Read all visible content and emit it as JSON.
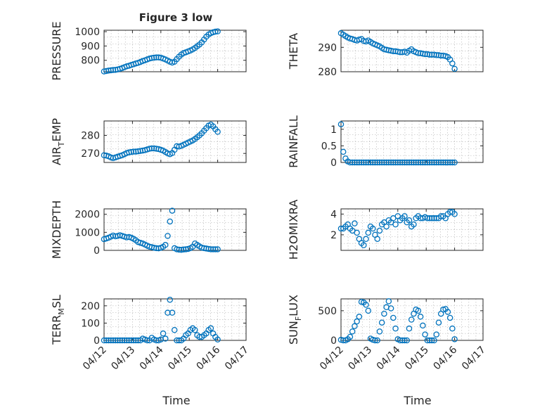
{
  "figure": {
    "title": "Figure 3 low",
    "xlabel": "Time",
    "date_ticks": [
      "04/12",
      "04/13",
      "04/14",
      "04/15",
      "04/16",
      "04/17"
    ]
  },
  "chart_data": [
    {
      "type": "scatter",
      "ylabel": "PRESSURE",
      "xlim": [
        0,
        5
      ],
      "ylim": [
        720,
        1010
      ],
      "yticks": [
        800,
        900,
        1000
      ],
      "color": "#0072BD",
      "x": [
        0,
        0.08,
        0.16,
        0.24,
        0.32,
        0.4,
        0.48,
        0.56,
        0.64,
        0.72,
        0.8,
        0.88,
        0.96,
        1.04,
        1.12,
        1.2,
        1.28,
        1.36,
        1.44,
        1.52,
        1.6,
        1.68,
        1.76,
        1.84,
        1.92,
        2.0,
        2.08,
        2.16,
        2.24,
        2.32,
        2.4,
        2.48,
        2.56,
        2.64,
        2.72,
        2.8,
        2.88,
        2.96,
        3.04,
        3.12,
        3.2,
        3.28,
        3.36,
        3.44,
        3.52,
        3.6,
        3.68,
        3.76,
        3.84,
        3.92,
        4.0
      ],
      "y": [
        722,
        725,
        728,
        730,
        732,
        733,
        736,
        740,
        745,
        752,
        758,
        762,
        768,
        772,
        778,
        782,
        788,
        795,
        800,
        806,
        812,
        816,
        818,
        820,
        820,
        818,
        812,
        806,
        798,
        790,
        784,
        790,
        808,
        825,
        840,
        850,
        856,
        862,
        868,
        876,
        886,
        898,
        910,
        925,
        945,
        965,
        980,
        990,
        996,
        1000,
        1002
      ]
    },
    {
      "type": "scatter",
      "ylabel": "THETA",
      "xlim": [
        0,
        5
      ],
      "ylim": [
        280,
        297
      ],
      "yticks": [
        280,
        290
      ],
      "color": "#0072BD",
      "x": [
        0,
        0.08,
        0.16,
        0.24,
        0.32,
        0.4,
        0.48,
        0.56,
        0.64,
        0.72,
        0.8,
        0.88,
        0.96,
        1.04,
        1.12,
        1.2,
        1.28,
        1.36,
        1.44,
        1.52,
        1.6,
        1.68,
        1.76,
        1.84,
        1.92,
        2.0,
        2.08,
        2.16,
        2.24,
        2.32,
        2.4,
        2.48,
        2.56,
        2.64,
        2.72,
        2.8,
        2.88,
        2.96,
        3.04,
        3.12,
        3.2,
        3.28,
        3.36,
        3.44,
        3.52,
        3.6,
        3.68,
        3.76,
        3.84,
        3.92,
        4.0
      ],
      "y": [
        295.8,
        295.2,
        294.6,
        294.0,
        293.6,
        293.4,
        293.0,
        292.8,
        293.2,
        293.4,
        292.6,
        292.4,
        292.8,
        292.2,
        291.6,
        291.2,
        290.8,
        290.4,
        289.8,
        289.2,
        289.0,
        288.8,
        288.6,
        288.4,
        288.4,
        288.2,
        288.0,
        288.0,
        288.2,
        287.8,
        288.6,
        289.2,
        288.4,
        288.0,
        287.6,
        287.6,
        287.4,
        287.2,
        287.2,
        287.0,
        287.0,
        287.0,
        286.8,
        286.8,
        286.6,
        286.6,
        286.4,
        286.0,
        285.0,
        283.4,
        281.2
      ]
    },
    {
      "type": "scatter",
      "ylabel": "AIR",
      "ylabel_sub": "T",
      "ylabel_rest": "EMP",
      "xlim": [
        0,
        5
      ],
      "ylim": [
        265,
        288
      ],
      "yticks": [
        270,
        280
      ],
      "color": "#0072BD",
      "x": [
        0,
        0.08,
        0.16,
        0.24,
        0.32,
        0.4,
        0.48,
        0.56,
        0.64,
        0.72,
        0.8,
        0.88,
        0.96,
        1.04,
        1.12,
        1.2,
        1.28,
        1.36,
        1.44,
        1.52,
        1.6,
        1.68,
        1.76,
        1.84,
        1.92,
        2.0,
        2.08,
        2.16,
        2.24,
        2.32,
        2.4,
        2.48,
        2.56,
        2.64,
        2.72,
        2.8,
        2.88,
        2.96,
        3.04,
        3.12,
        3.2,
        3.28,
        3.36,
        3.44,
        3.52,
        3.6,
        3.68,
        3.76,
        3.84,
        3.92,
        4.0
      ],
      "y": [
        269.0,
        268.8,
        268.4,
        267.8,
        267.4,
        267.8,
        268.2,
        268.6,
        269.0,
        269.6,
        270.2,
        270.6,
        270.8,
        271.0,
        271.0,
        271.2,
        271.4,
        271.6,
        271.8,
        272.2,
        272.6,
        272.8,
        272.8,
        272.6,
        272.4,
        272.0,
        271.6,
        270.8,
        270.0,
        269.6,
        270.2,
        272.0,
        274.0,
        273.8,
        274.2,
        274.8,
        275.4,
        276.0,
        276.6,
        277.2,
        278.0,
        279.0,
        280.0,
        281.2,
        282.6,
        284.0,
        285.4,
        286.0,
        285.0,
        283.4,
        282.0
      ]
    },
    {
      "type": "scatter",
      "ylabel": "RAINFALL",
      "xlim": [
        0,
        5
      ],
      "ylim": [
        0,
        1.25
      ],
      "yticks": [
        0,
        0.5,
        1
      ],
      "color": "#0072BD",
      "x": [
        0,
        0.08,
        0.16,
        0.24,
        0.32,
        0.4,
        0.48,
        0.56,
        0.64,
        0.72,
        0.8,
        0.88,
        0.96,
        1.04,
        1.12,
        1.2,
        1.28,
        1.36,
        1.44,
        1.52,
        1.6,
        1.68,
        1.76,
        1.84,
        1.92,
        2.0,
        2.08,
        2.16,
        2.24,
        2.32,
        2.4,
        2.48,
        2.56,
        2.64,
        2.72,
        2.8,
        2.88,
        2.96,
        3.04,
        3.12,
        3.2,
        3.28,
        3.36,
        3.44,
        3.52,
        3.6,
        3.68,
        3.76,
        3.84,
        3.92,
        4.0
      ],
      "y": [
        1.15,
        0.32,
        0.12,
        0.03,
        0,
        0,
        0,
        0,
        0,
        0,
        0,
        0,
        0,
        0,
        0,
        0,
        0,
        0,
        0,
        0,
        0,
        0,
        0,
        0,
        0,
        0,
        0,
        0,
        0,
        0,
        0,
        0,
        0,
        0,
        0,
        0,
        0,
        0,
        0,
        0,
        0,
        0,
        0,
        0,
        0,
        0,
        0,
        0,
        0,
        0,
        0
      ]
    },
    {
      "type": "scatter",
      "ylabel": "MIXDEPTH",
      "xlim": [
        0,
        5
      ],
      "ylim": [
        0,
        2300
      ],
      "yticks": [
        0,
        1000,
        2000
      ],
      "color": "#0072BD",
      "x": [
        0,
        0.08,
        0.16,
        0.24,
        0.32,
        0.4,
        0.48,
        0.56,
        0.64,
        0.72,
        0.8,
        0.88,
        0.96,
        1.04,
        1.12,
        1.2,
        1.28,
        1.36,
        1.44,
        1.52,
        1.6,
        1.68,
        1.76,
        1.84,
        1.92,
        2.0,
        2.08,
        2.16,
        2.24,
        2.32,
        2.4,
        2.48,
        2.56,
        2.64,
        2.72,
        2.8,
        2.88,
        2.96,
        3.04,
        3.12,
        3.2,
        3.28,
        3.36,
        3.44,
        3.52,
        3.6,
        3.68,
        3.76,
        3.84,
        3.92,
        4.0
      ],
      "y": [
        620,
        660,
        700,
        760,
        820,
        780,
        800,
        840,
        800,
        760,
        720,
        740,
        700,
        640,
        560,
        460,
        420,
        380,
        320,
        260,
        200,
        180,
        140,
        120,
        110,
        140,
        200,
        300,
        800,
        1600,
        2200,
        120,
        60,
        40,
        30,
        50,
        60,
        80,
        120,
        200,
        380,
        300,
        220,
        150,
        120,
        100,
        80,
        60,
        60,
        60,
        60
      ]
    },
    {
      "type": "scatter",
      "ylabel": "H2OMIXRA",
      "xlim": [
        0,
        5
      ],
      "ylim": [
        0.5,
        4.5
      ],
      "yticks": [
        2,
        4
      ],
      "color": "#0072BD",
      "x": [
        0,
        0.08,
        0.16,
        0.24,
        0.32,
        0.4,
        0.48,
        0.56,
        0.64,
        0.72,
        0.8,
        0.88,
        0.96,
        1.04,
        1.12,
        1.2,
        1.28,
        1.36,
        1.44,
        1.52,
        1.6,
        1.68,
        1.76,
        1.84,
        1.92,
        2.0,
        2.08,
        2.16,
        2.24,
        2.32,
        2.4,
        2.48,
        2.56,
        2.64,
        2.72,
        2.8,
        2.88,
        2.96,
        3.04,
        3.12,
        3.2,
        3.28,
        3.36,
        3.44,
        3.52,
        3.6,
        3.68,
        3.76,
        3.84,
        3.92,
        4.0
      ],
      "y": [
        2.6,
        2.6,
        2.8,
        3.0,
        2.6,
        2.4,
        3.1,
        2.2,
        1.6,
        1.2,
        1.0,
        1.6,
        2.2,
        2.8,
        2.6,
        2.0,
        1.6,
        2.4,
        3.0,
        3.2,
        2.8,
        3.4,
        3.2,
        3.6,
        3.0,
        3.8,
        3.4,
        3.6,
        3.8,
        3.2,
        3.4,
        2.8,
        3.0,
        3.6,
        3.8,
        3.6,
        3.6,
        3.7,
        3.6,
        3.6,
        3.6,
        3.6,
        3.6,
        3.6,
        3.8,
        3.8,
        3.6,
        4.0,
        4.2,
        4.2,
        4.0
      ]
    },
    {
      "type": "scatter",
      "ylabel": "TERR",
      "ylabel_sub": "M",
      "ylabel_rest": "SL",
      "xlim": [
        0,
        5
      ],
      "ylim": [
        0,
        240
      ],
      "yticks": [
        0,
        100,
        200
      ],
      "color": "#0072BD",
      "x": [
        0,
        0.08,
        0.16,
        0.24,
        0.32,
        0.4,
        0.48,
        0.56,
        0.64,
        0.72,
        0.8,
        0.88,
        0.96,
        1.04,
        1.12,
        1.2,
        1.28,
        1.36,
        1.44,
        1.52,
        1.6,
        1.68,
        1.76,
        1.84,
        1.92,
        2.0,
        2.08,
        2.16,
        2.24,
        2.32,
        2.4,
        2.48,
        2.56,
        2.64,
        2.72,
        2.8,
        2.88,
        2.96,
        3.04,
        3.12,
        3.2,
        3.28,
        3.36,
        3.44,
        3.52,
        3.6,
        3.68,
        3.76,
        3.84,
        3.92,
        4.0
      ],
      "y": [
        0,
        0,
        0,
        0,
        0,
        0,
        0,
        0,
        0,
        0,
        0,
        0,
        0,
        0,
        0,
        0,
        0,
        10,
        5,
        0,
        0,
        15,
        5,
        0,
        0,
        5,
        40,
        10,
        160,
        235,
        160,
        60,
        0,
        0,
        0,
        10,
        30,
        40,
        60,
        70,
        60,
        30,
        20,
        20,
        30,
        40,
        60,
        70,
        40,
        20,
        5
      ]
    },
    {
      "type": "scatter",
      "ylabel": "SUN",
      "ylabel_sub": "F",
      "ylabel_rest": "LUX",
      "xlim": [
        0,
        5
      ],
      "ylim": [
        0,
        700
      ],
      "yticks": [
        0,
        500
      ],
      "color": "#0072BD",
      "x": [
        0,
        0.08,
        0.16,
        0.24,
        0.32,
        0.4,
        0.48,
        0.56,
        0.64,
        0.72,
        0.8,
        0.88,
        0.96,
        1.04,
        1.12,
        1.2,
        1.28,
        1.36,
        1.44,
        1.52,
        1.6,
        1.68,
        1.76,
        1.84,
        1.92,
        2.0,
        2.08,
        2.16,
        2.24,
        2.32,
        2.4,
        2.48,
        2.56,
        2.64,
        2.72,
        2.8,
        2.88,
        2.96,
        3.04,
        3.12,
        3.2,
        3.28,
        3.36,
        3.44,
        3.52,
        3.6,
        3.68,
        3.76,
        3.84,
        3.92,
        4.0
      ],
      "y": [
        10,
        0,
        0,
        20,
        60,
        150,
        240,
        320,
        400,
        650,
        640,
        600,
        500,
        30,
        10,
        0,
        0,
        150,
        300,
        450,
        560,
        660,
        540,
        380,
        200,
        20,
        0,
        0,
        0,
        0,
        200,
        350,
        450,
        520,
        500,
        400,
        250,
        100,
        0,
        0,
        0,
        0,
        100,
        300,
        450,
        520,
        530,
        480,
        380,
        200,
        20
      ]
    }
  ]
}
